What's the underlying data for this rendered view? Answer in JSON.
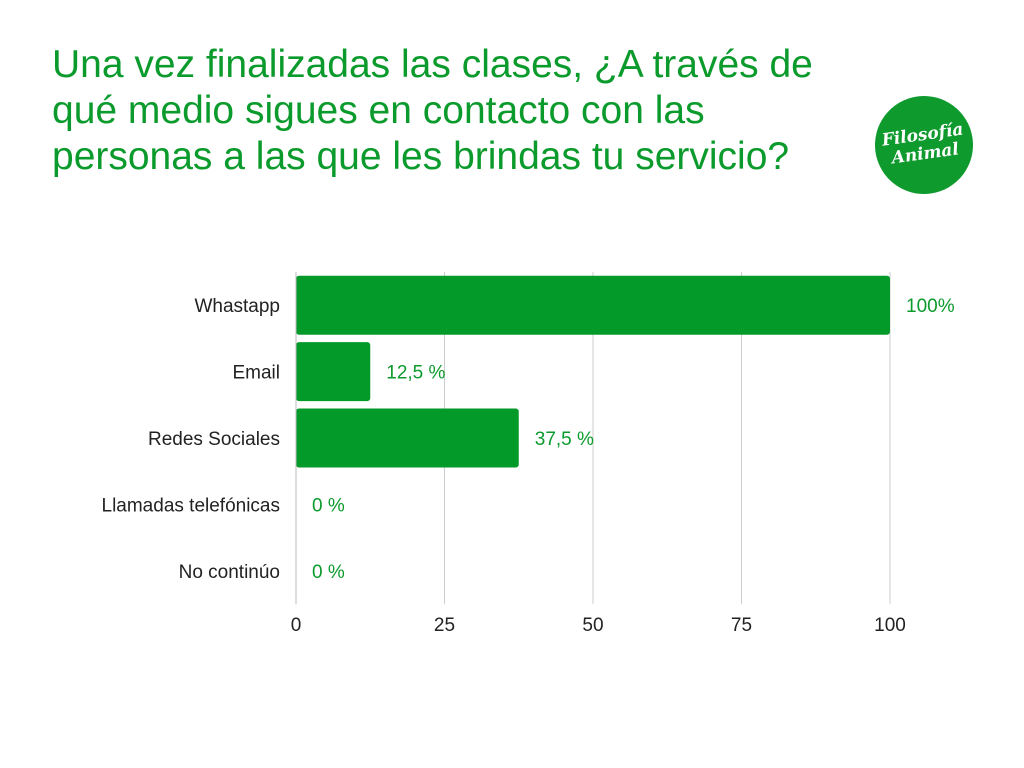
{
  "title": "Una vez finalizadas las clases, ¿A través de qué medio sigues en contacto con las personas a las que les brindas tu servicio?",
  "logo": {
    "line1": "Filosofía",
    "line2": "Animal"
  },
  "colors": {
    "accent": "#0b9a2c",
    "bar": "#039a29",
    "grid": "#cccccc",
    "text": "#222222"
  },
  "chart_data": {
    "type": "bar",
    "orientation": "horizontal",
    "categories": [
      "Whastapp",
      "Email",
      "Redes Sociales",
      "Llamadas telefónicas",
      "No continúo"
    ],
    "values": [
      100,
      12.5,
      37.5,
      0,
      0
    ],
    "data_labels": [
      "100%",
      "12,5 %",
      "37,5 %",
      "0 %",
      "0 %"
    ],
    "xlim": [
      0,
      100
    ],
    "x_ticks": [
      0,
      25,
      50,
      75,
      100
    ],
    "grid": true,
    "xlabel": "",
    "ylabel": ""
  }
}
